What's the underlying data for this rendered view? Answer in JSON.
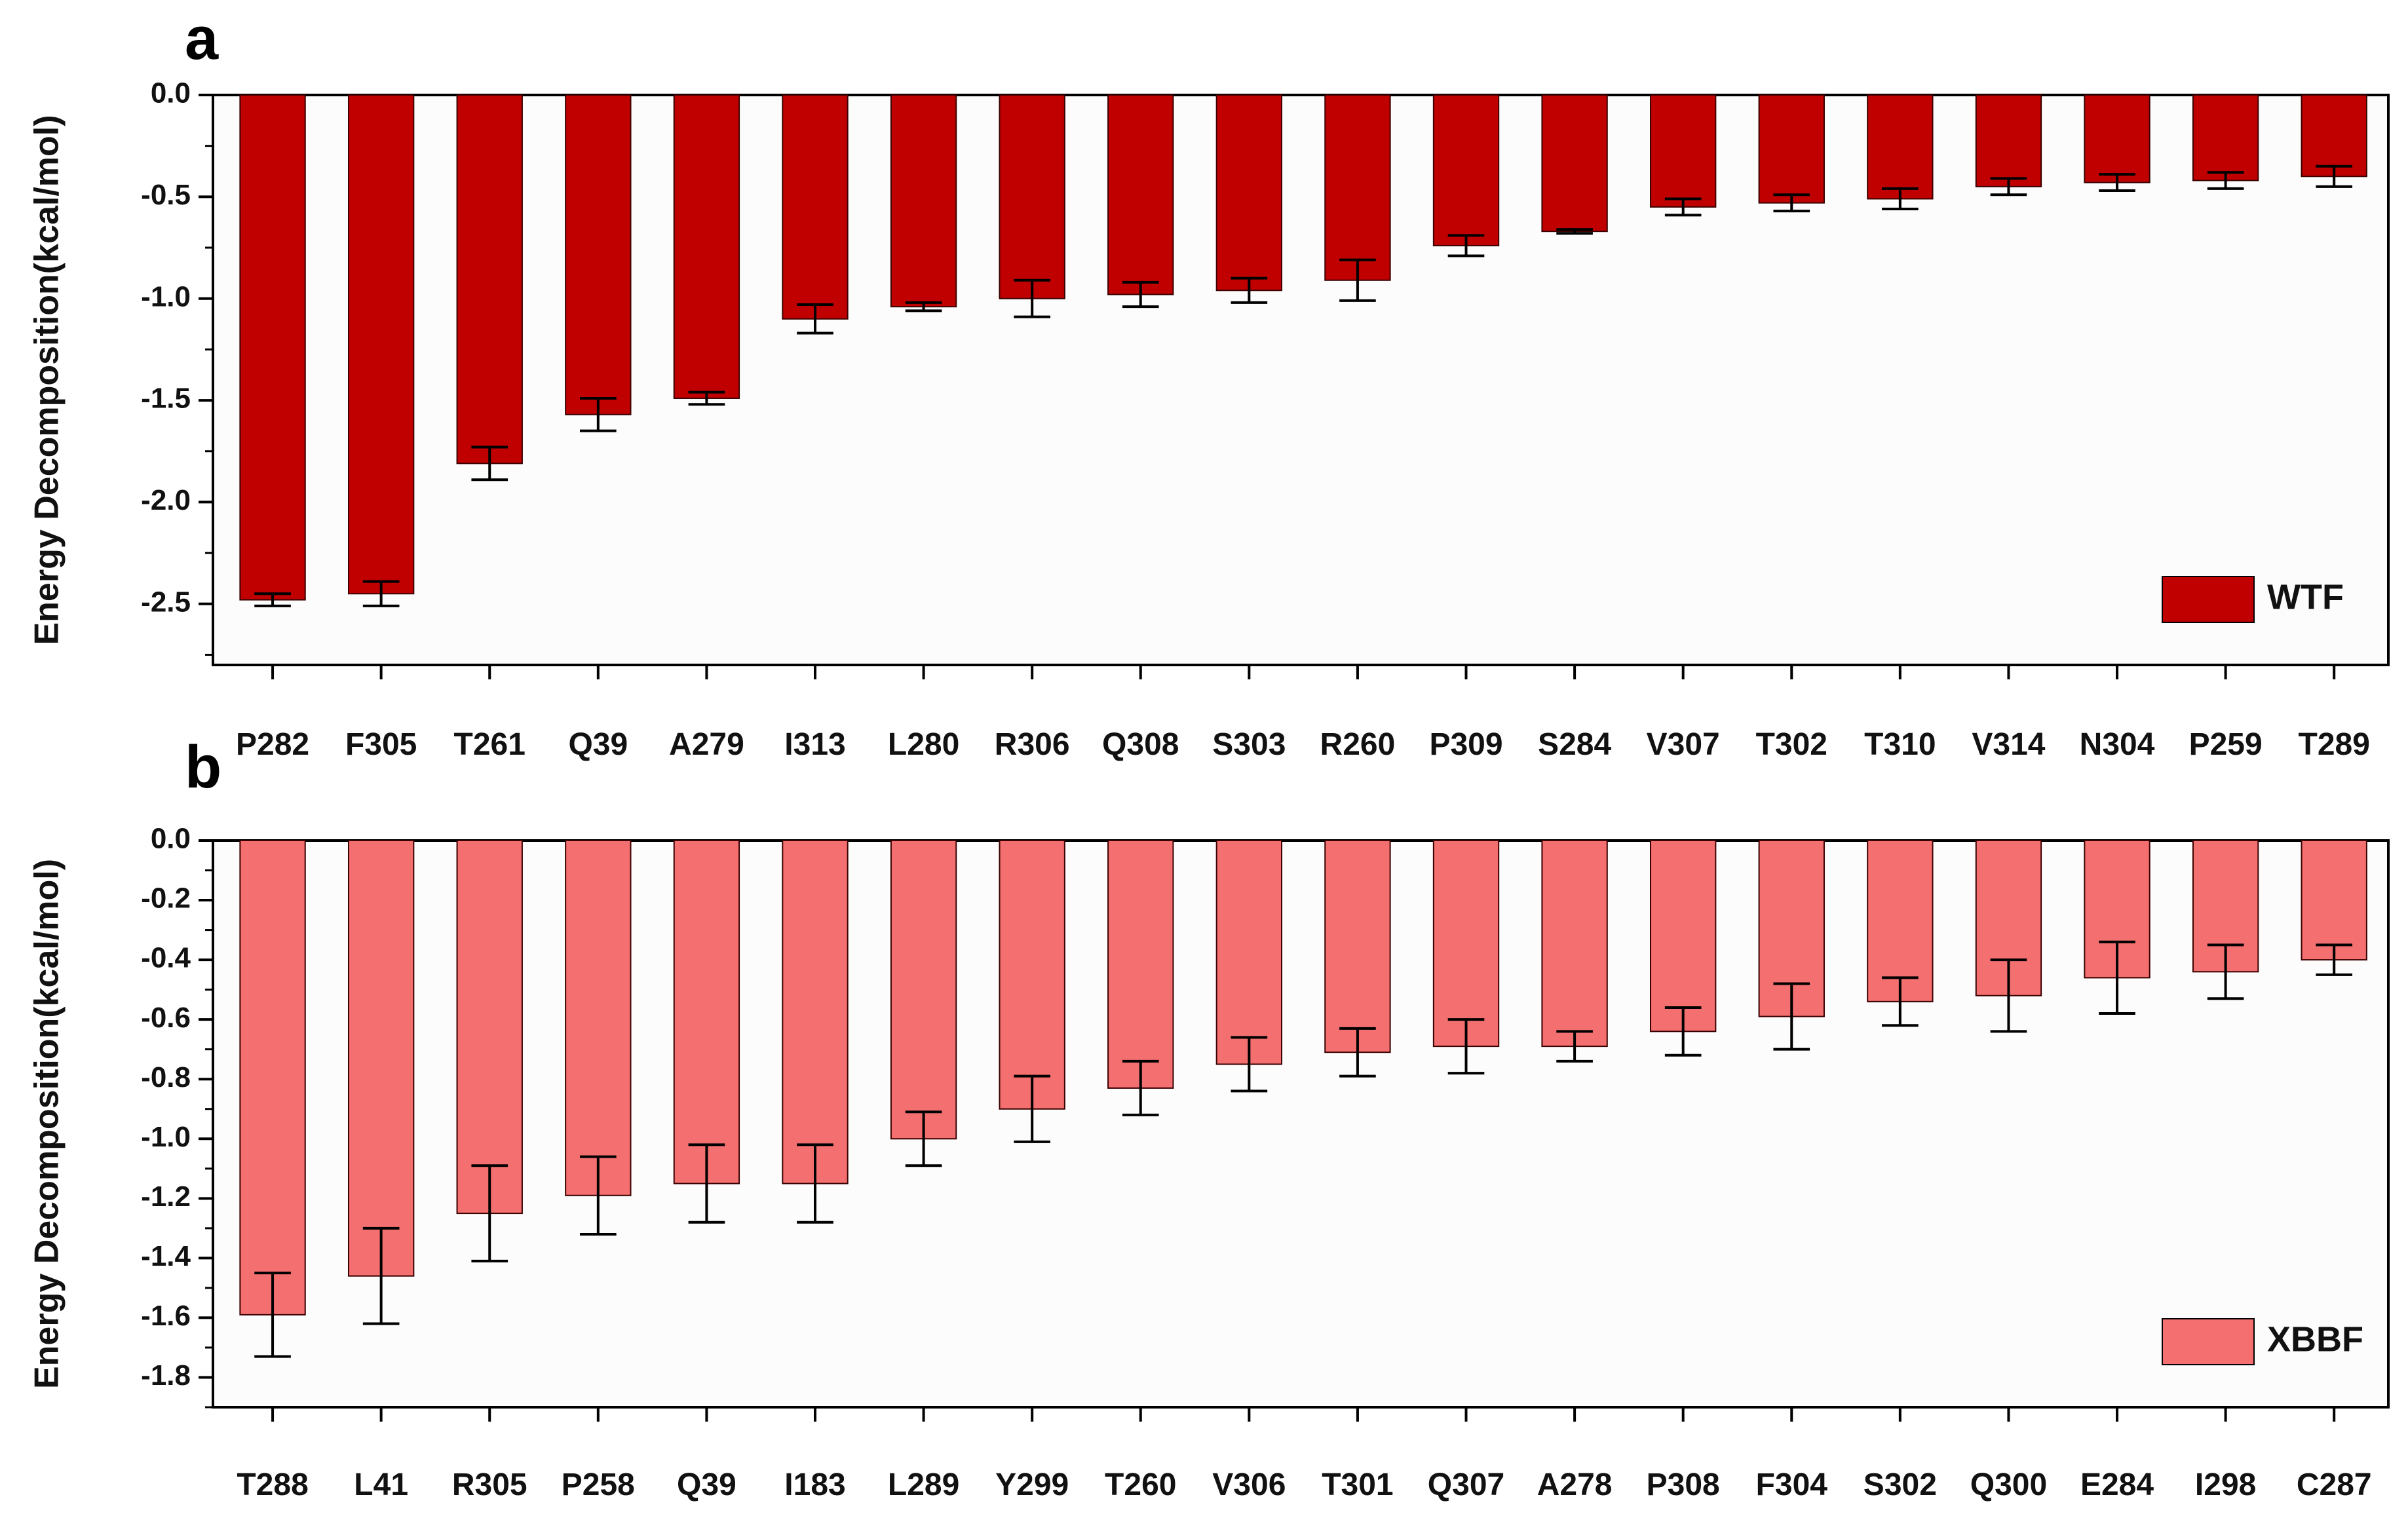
{
  "chart_data": [
    {
      "panel": "a",
      "type": "bar",
      "ylabel": "Energy Decomposition(kcal/mol)",
      "ylim": [
        -2.8,
        0.0
      ],
      "yticks": [
        0.0,
        -0.5,
        -1.0,
        -1.5,
        -2.0,
        -2.5
      ],
      "yticks_labels": [
        "0.0",
        "-0.5",
        "-1.0",
        "-1.5",
        "-2.0",
        "-2.5"
      ],
      "minor_tick_step": 0.25,
      "grid": false,
      "legend_position": "bottom-right",
      "color": "#c00000",
      "series": [
        {
          "name": "WTF",
          "values": [
            -2.48,
            -2.45,
            -1.81,
            -1.57,
            -1.49,
            -1.1,
            -1.04,
            -1.0,
            -0.98,
            -0.96,
            -0.91,
            -0.74,
            -0.67,
            -0.55,
            -0.53,
            -0.51,
            -0.45,
            -0.43,
            -0.42,
            -0.4
          ],
          "errors": [
            0.03,
            0.06,
            0.08,
            0.08,
            0.03,
            0.07,
            0.02,
            0.09,
            0.06,
            0.06,
            0.1,
            0.05,
            0.01,
            0.04,
            0.04,
            0.05,
            0.04,
            0.04,
            0.04,
            0.05
          ]
        }
      ],
      "categories": [
        "P282",
        "F305",
        "T261",
        "Q39",
        "A279",
        "I313",
        "L280",
        "R306",
        "Q308",
        "S303",
        "R260",
        "P309",
        "S284",
        "V307",
        "T302",
        "T310",
        "V314",
        "N304",
        "P259",
        "T289"
      ]
    },
    {
      "panel": "b",
      "type": "bar",
      "ylabel": "Energy Decomposition(kcal/mol)",
      "ylim": [
        -1.9,
        0.0
      ],
      "yticks": [
        0.0,
        -0.2,
        -0.4,
        -0.6,
        -0.8,
        -1.0,
        -1.2,
        -1.4,
        -1.6,
        -1.8
      ],
      "yticks_labels": [
        "0.0",
        "-0.2",
        "-0.4",
        "-0.6",
        "-0.8",
        "-1.0",
        "-1.2",
        "-1.4",
        "-1.6",
        "-1.8"
      ],
      "minor_tick_step": 0.1,
      "grid": false,
      "legend_position": "bottom-right",
      "color": "#f47070",
      "series": [
        {
          "name": "XBBF",
          "values": [
            -1.59,
            -1.46,
            -1.25,
            -1.19,
            -1.15,
            -1.15,
            -1.0,
            -0.9,
            -0.83,
            -0.75,
            -0.71,
            -0.69,
            -0.69,
            -0.64,
            -0.59,
            -0.54,
            -0.52,
            -0.46,
            -0.44,
            -0.4
          ],
          "errors": [
            0.14,
            0.16,
            0.16,
            0.13,
            0.13,
            0.13,
            0.09,
            0.11,
            0.09,
            0.09,
            0.08,
            0.09,
            0.05,
            0.08,
            0.11,
            0.08,
            0.12,
            0.12,
            0.09,
            0.05
          ]
        }
      ],
      "categories": [
        "T288",
        "L41",
        "R305",
        "P258",
        "Q39",
        "I183",
        "L289",
        "Y299",
        "T260",
        "V306",
        "T301",
        "Q307",
        "A278",
        "P308",
        "F304",
        "S302",
        "Q300",
        "E284",
        "I298",
        "C287"
      ]
    }
  ]
}
